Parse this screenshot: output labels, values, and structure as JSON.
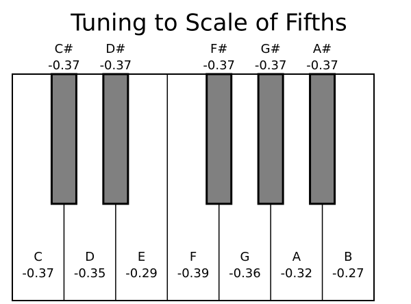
{
  "title": "Tuning to Scale of Fifths",
  "white_keys": [
    {
      "note": "C",
      "value": -0.37
    },
    {
      "note": "D",
      "value": -0.35
    },
    {
      "note": "E",
      "value": -0.29
    },
    {
      "note": "F",
      "value": -0.39
    },
    {
      "note": "G",
      "value": -0.36
    },
    {
      "note": "A",
      "value": -0.32
    },
    {
      "note": "B",
      "value": -0.27
    }
  ],
  "black_keys": [
    {
      "note": "C#",
      "value": -0.37
    },
    {
      "note": "D#",
      "value": -0.37
    },
    {
      "note": "F#",
      "value": -0.37
    },
    {
      "note": "G#",
      "value": -0.37
    },
    {
      "note": "A#",
      "value": -0.37
    }
  ]
}
